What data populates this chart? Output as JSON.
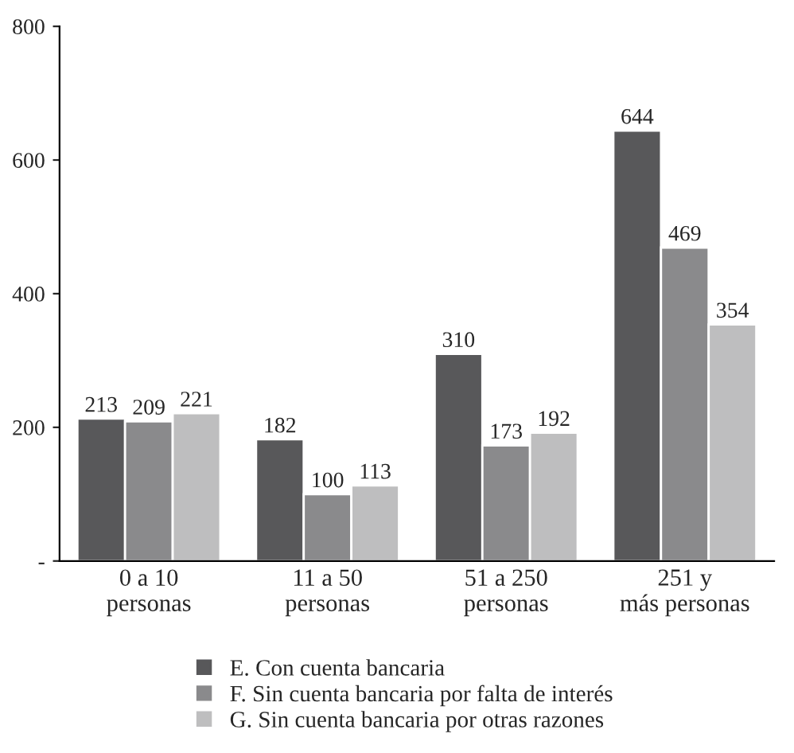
{
  "chart_data": {
    "type": "bar",
    "categories": [
      "0 a 10\npersonas",
      "11 a 50\npersonas",
      "51 a 250\npersonas",
      "251 y\nmás personas"
    ],
    "series": [
      {
        "name": "E. Con cuenta bancaria",
        "color": "#58585a",
        "values": [
          213,
          182,
          310,
          644
        ]
      },
      {
        "name": "F. Sin cuenta bancaria por falta de interés",
        "color": "#8a8a8c",
        "values": [
          209,
          100,
          173,
          469
        ]
      },
      {
        "name": "G. Sin cuenta bancaria por otras razones",
        "color": "#bebebf",
        "values": [
          221,
          113,
          192,
          354
        ]
      }
    ],
    "ylim": [
      0,
      800
    ],
    "yticks": [
      {
        "value": 0,
        "label": "-"
      },
      200,
      400,
      600,
      800
    ],
    "data_labels": true,
    "grid": false,
    "legend": "bottom"
  }
}
